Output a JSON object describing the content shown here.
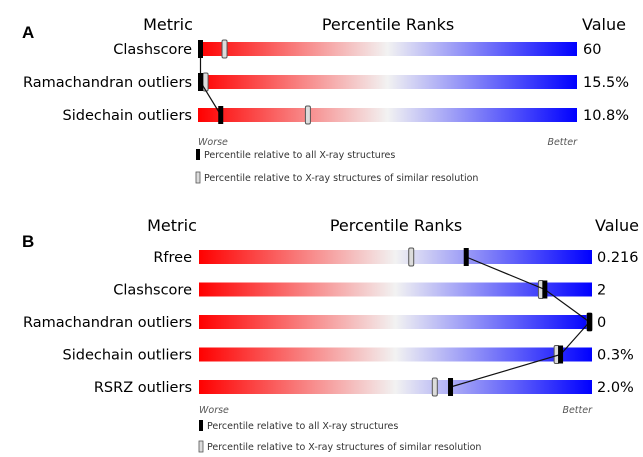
{
  "chart_data": [
    {
      "type": "bar",
      "panel": "A",
      "headers": {
        "metric": "Metric",
        "ranks": "Percentile Ranks",
        "value": "Value"
      },
      "rows": [
        {
          "metric": "Clashscore",
          "value": "60",
          "all_percentile": 0,
          "similar_percentile": 7
        },
        {
          "metric": "Ramachandran outliers",
          "value": "15.5%",
          "all_percentile": 0,
          "similar_percentile": 2
        },
        {
          "metric": "Sidechain outliers",
          "value": "10.8%",
          "all_percentile": 6,
          "similar_percentile": 29
        }
      ],
      "scale_labels": {
        "worse": "Worse",
        "better": "Better"
      },
      "legend": {
        "all": "Percentile relative to all X-ray structures",
        "similar": "Percentile relative to X-ray structures of similar resolution"
      },
      "xlim": [
        0,
        100
      ],
      "colors": {
        "worse": "#ff0000",
        "middle": "#f2f2f2",
        "better": "#0000ff"
      }
    },
    {
      "type": "bar",
      "panel": "B",
      "headers": {
        "metric": "Metric",
        "ranks": "Percentile Ranks",
        "value": "Value"
      },
      "rows": [
        {
          "metric": "Rfree",
          "value": "0.216",
          "all_percentile": 68,
          "similar_percentile": 54
        },
        {
          "metric": "Clashscore",
          "value": "2",
          "all_percentile": 88,
          "similar_percentile": 87
        },
        {
          "metric": "Ramachandran outliers",
          "value": "0",
          "all_percentile": 100,
          "similar_percentile": 100
        },
        {
          "metric": "Sidechain outliers",
          "value": "0.3%",
          "all_percentile": 92,
          "similar_percentile": 91
        },
        {
          "metric": "RSRZ outliers",
          "value": "2.0%",
          "all_percentile": 64,
          "similar_percentile": 60
        }
      ],
      "scale_labels": {
        "worse": "Worse",
        "better": "Better"
      },
      "legend": {
        "all": "Percentile relative to all X-ray structures",
        "similar": "Percentile relative to X-ray structures of similar resolution"
      },
      "xlim": [
        0,
        100
      ],
      "colors": {
        "worse": "#ff0000",
        "middle": "#f2f2f2",
        "better": "#0000ff"
      }
    }
  ]
}
